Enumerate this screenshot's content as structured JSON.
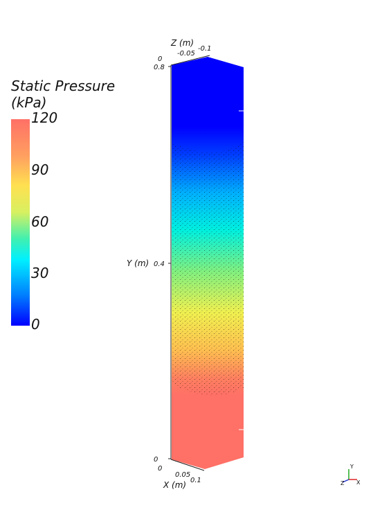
{
  "legend": {
    "title_line1": "Static Pressure",
    "title_line2": "(kPa)",
    "ticks": [
      "120",
      "90",
      "60",
      "30",
      "0"
    ],
    "colormap": [
      "#ff7066",
      "#ffa060",
      "#ffe050",
      "#40f0b0",
      "#00f0ff",
      "#0080ff",
      "#0000ff"
    ]
  },
  "axes": {
    "z_label": "Z (m)",
    "z_ticks": [
      "0",
      "-0.05",
      "-0.1"
    ],
    "y_label": "Y (m)",
    "y_ticks": [
      "0.8",
      "0.4",
      "0"
    ],
    "x_label": "X (m)",
    "x_ticks": [
      "0",
      "0.05",
      "0.1"
    ]
  },
  "orientation": {
    "x": "X",
    "y": "Y",
    "z": "Z"
  }
}
